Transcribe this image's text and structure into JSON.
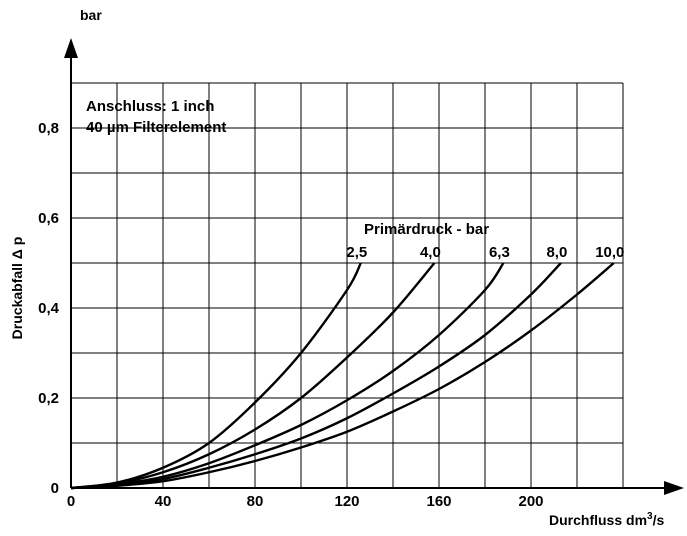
{
  "chart_data": {
    "type": "line",
    "ylabel": "Druckabfall Δ p",
    "yunit": "bar",
    "xlabel_text": "Durchfluss dm",
    "xlabel_sup": "3",
    "xlabel_tail": "/s",
    "xlim": [
      0,
      240
    ],
    "ylim": [
      0,
      0.9
    ],
    "grid": true,
    "x_ticks": [
      {
        "value": 0,
        "label": "0"
      },
      {
        "value": 40,
        "label": "40"
      },
      {
        "value": 80,
        "label": "80"
      },
      {
        "value": 120,
        "label": "120"
      },
      {
        "value": 160,
        "label": "160"
      },
      {
        "value": 200,
        "label": "200"
      }
    ],
    "y_ticks": [
      {
        "value": 0,
        "label": "0"
      },
      {
        "value": 0.2,
        "label": "0,2"
      },
      {
        "value": 0.4,
        "label": "0,4"
      },
      {
        "value": 0.6,
        "label": "0,6"
      },
      {
        "value": 0.8,
        "label": "0,8"
      }
    ],
    "annotation": [
      "Anschluss: 1 inch",
      "40 µm Filterelement"
    ],
    "legend_title": "Primärdruck - bar",
    "series": [
      {
        "name": "2,5",
        "x": [
          0,
          20,
          40,
          60,
          80,
          100,
          120,
          126
        ],
        "y": [
          0,
          0.012,
          0.045,
          0.1,
          0.19,
          0.3,
          0.44,
          0.5
        ]
      },
      {
        "name": "4,0",
        "x": [
          0,
          20,
          40,
          60,
          80,
          100,
          120,
          140,
          158
        ],
        "y": [
          0,
          0.01,
          0.035,
          0.075,
          0.13,
          0.2,
          0.29,
          0.39,
          0.5
        ]
      },
      {
        "name": "6,3",
        "x": [
          0,
          20,
          40,
          60,
          80,
          100,
          120,
          140,
          160,
          180,
          188
        ],
        "y": [
          0,
          0.008,
          0.025,
          0.055,
          0.095,
          0.14,
          0.195,
          0.26,
          0.34,
          0.44,
          0.5
        ]
      },
      {
        "name": "8,0",
        "x": [
          0,
          20,
          40,
          60,
          80,
          100,
          120,
          140,
          160,
          180,
          200,
          213
        ],
        "y": [
          0,
          0.007,
          0.02,
          0.045,
          0.075,
          0.11,
          0.155,
          0.21,
          0.27,
          0.34,
          0.43,
          0.5
        ]
      },
      {
        "name": "10,0",
        "x": [
          0,
          20,
          40,
          60,
          80,
          100,
          120,
          140,
          160,
          180,
          200,
          220,
          236
        ],
        "y": [
          0,
          0.005,
          0.015,
          0.035,
          0.06,
          0.09,
          0.125,
          0.17,
          0.22,
          0.28,
          0.35,
          0.43,
          0.5
        ]
      }
    ]
  }
}
